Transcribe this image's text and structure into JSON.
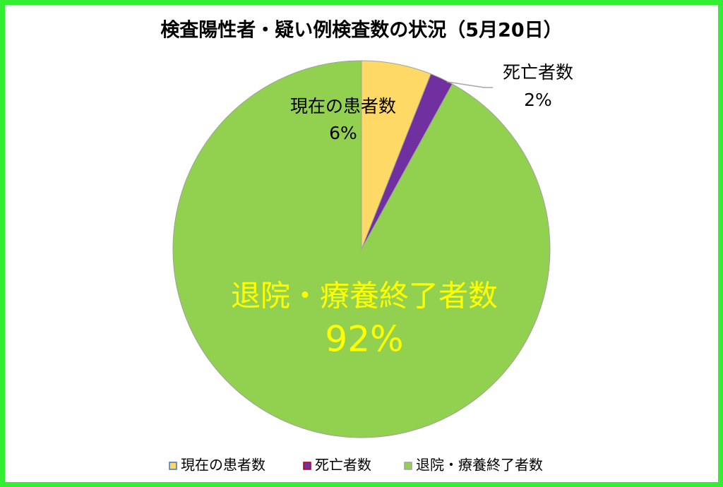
{
  "chart_data": {
    "type": "pie",
    "title": "検査陽性者・疑い例検査数の状況（5月20日）",
    "categories": [
      "現在の患者数",
      "死亡者数",
      "退院・療養終了者数"
    ],
    "values": [
      6,
      2,
      92
    ],
    "value_labels": [
      "6%",
      "2%",
      "92%"
    ],
    "colors": [
      "#ffd966",
      "#7030a0",
      "#92d050"
    ],
    "legend": "bottom"
  }
}
